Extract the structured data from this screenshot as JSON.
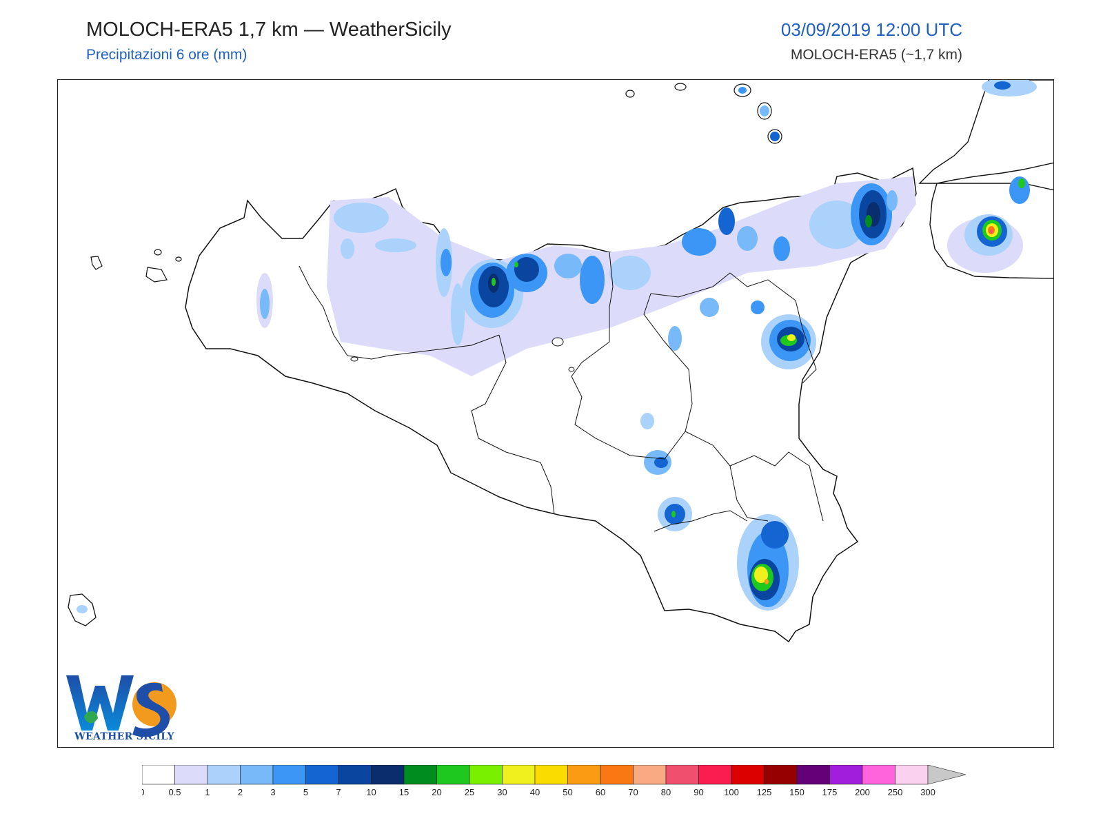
{
  "header": {
    "title": "MOLOCH-ERA5 1,7 km — WeatherSicily",
    "subtitle": "Precipitazioni 6 ore (mm)",
    "datetime": "03/09/2019 12:00 UTC",
    "model_label": "MOLOCH-ERA5 (~1,7 km)"
  },
  "logo": {
    "letters": "WS",
    "caption": "WEATHER SICILY"
  },
  "legend": {
    "levels": [
      "0",
      "0.5",
      "1",
      "2",
      "3",
      "5",
      "7",
      "10",
      "15",
      "20",
      "25",
      "30",
      "40",
      "50",
      "60",
      "70",
      "80",
      "90",
      "100",
      "125",
      "150",
      "175",
      "200",
      "250",
      "300"
    ],
    "colors": [
      "#ffffff",
      "#dcdcfa",
      "#aad2fa",
      "#78b9fa",
      "#3c96f5",
      "#1464d2",
      "#0a46a0",
      "#0a2d6e",
      "#008c1e",
      "#1ec81e",
      "#78f000",
      "#f0f01e",
      "#fadc00",
      "#fa9b14",
      "#fa7814",
      "#faaa82",
      "#f0506e",
      "#fa1e50",
      "#dc0000",
      "#960000",
      "#640078",
      "#a01edc",
      "#ff64dc",
      "#fad2f0"
    ],
    "extend_color": "#c8c8c8"
  },
  "map": {
    "region": "Sicily",
    "coast_color": "#111111",
    "border_color": "#111111"
  }
}
